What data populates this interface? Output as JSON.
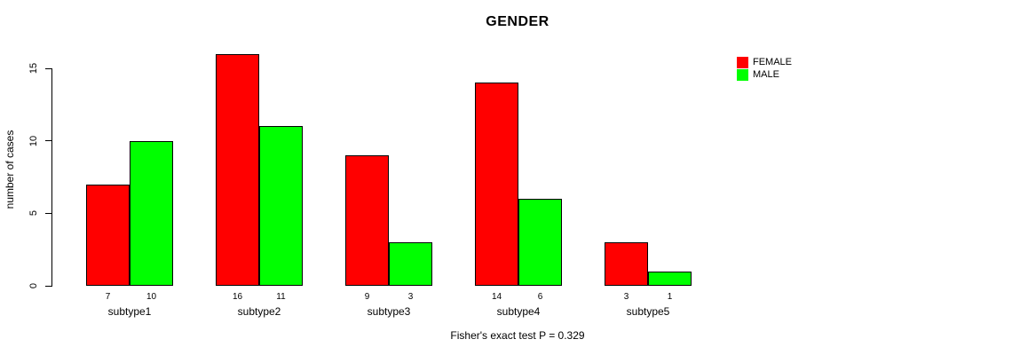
{
  "chart_data": {
    "type": "bar",
    "title": "GENDER",
    "ylabel": "number of cases",
    "xlabel": "",
    "categories": [
      "subtype1",
      "subtype2",
      "subtype3",
      "subtype4",
      "subtype5"
    ],
    "series": [
      {
        "name": "FEMALE",
        "color": "#FF0000",
        "values": [
          7,
          16,
          9,
          14,
          3
        ]
      },
      {
        "name": "MALE",
        "color": "#00FF00",
        "values": [
          10,
          11,
          3,
          6,
          1
        ]
      }
    ],
    "yticks": [
      0,
      5,
      10,
      15
    ],
    "ylim": [
      0,
      16
    ],
    "grid": false,
    "legend_position": "right",
    "bar_value_labels_shown": true,
    "caption": "Fisher's exact test P = 0.329"
  }
}
